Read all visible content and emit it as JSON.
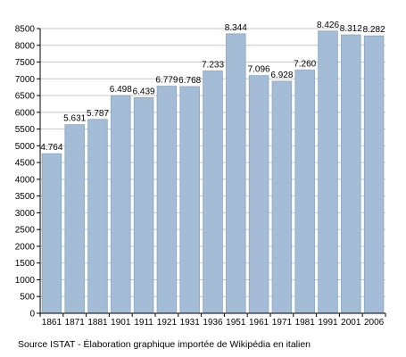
{
  "chart_data": {
    "type": "bar",
    "categories": [
      "1861",
      "1871",
      "1881",
      "1901",
      "1911",
      "1921",
      "1931",
      "1936",
      "1951",
      "1961",
      "1971",
      "1981",
      "1991",
      "2001",
      "2006"
    ],
    "values": [
      4764,
      5631,
      5787,
      6498,
      6439,
      6779,
      6768,
      7233,
      8344,
      7096,
      6928,
      7260,
      8426,
      8312,
      8282
    ],
    "value_labels": [
      "4.764",
      "5.631",
      "5.787",
      "6.498",
      "6.439",
      "6.779",
      "6.768",
      "7.233",
      "8.344",
      "7.096",
      "6.928",
      "7.260",
      "8.426",
      "8.312",
      "8.282"
    ],
    "ylim": [
      0,
      8500
    ],
    "y_ticks": [
      0,
      500,
      1000,
      1500,
      2000,
      2500,
      3000,
      3500,
      4000,
      4500,
      5000,
      5500,
      6000,
      6500,
      7000,
      7500,
      8000,
      8500
    ],
    "grid": true,
    "bar_color": "#a4bcd6",
    "bar_edge_color": "#8aa3bf",
    "grid_color": "#c8c8c8"
  },
  "source_text": "Source ISTAT - Élaboration graphique importée de Wikipédia en italien"
}
